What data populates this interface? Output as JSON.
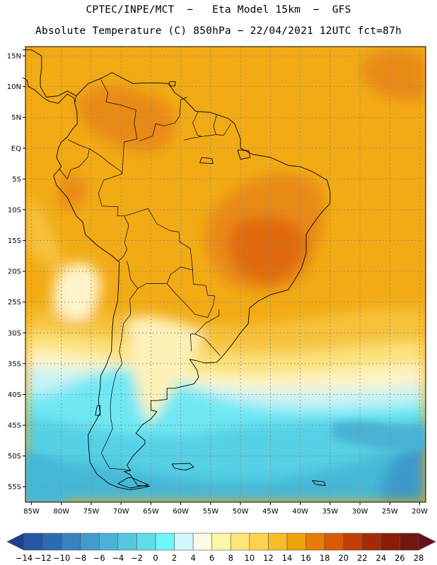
{
  "header": {
    "line1": "CPTEC/INPE/MCT  −   Eta Model 15km  −  GFS",
    "line2": "Absolute Temperature (C) 850hPa − 22/04/2021 12UTC fct=87h"
  },
  "map": {
    "lon_range": [
      -86,
      -19
    ],
    "lat_range": [
      -57.5,
      16.5
    ],
    "lat_ticks": [
      {
        "value": 15,
        "label": "15N"
      },
      {
        "value": 10,
        "label": "10N"
      },
      {
        "value": 5,
        "label": "5N"
      },
      {
        "value": 0,
        "label": "EQ"
      },
      {
        "value": -5,
        "label": "5S"
      },
      {
        "value": -10,
        "label": "10S"
      },
      {
        "value": -15,
        "label": "15S"
      },
      {
        "value": -20,
        "label": "20S"
      },
      {
        "value": -25,
        "label": "25S"
      },
      {
        "value": -30,
        "label": "30S"
      },
      {
        "value": -35,
        "label": "35S"
      },
      {
        "value": -40,
        "label": "40S"
      },
      {
        "value": -45,
        "label": "45S"
      },
      {
        "value": -50,
        "label": "50S"
      },
      {
        "value": -55,
        "label": "55S"
      }
    ],
    "lon_ticks": [
      {
        "value": -85,
        "label": "85W"
      },
      {
        "value": -80,
        "label": "80W"
      },
      {
        "value": -75,
        "label": "75W"
      },
      {
        "value": -70,
        "label": "70W"
      },
      {
        "value": -65,
        "label": "65W"
      },
      {
        "value": -60,
        "label": "60W"
      },
      {
        "value": -55,
        "label": "55W"
      },
      {
        "value": -50,
        "label": "50W"
      },
      {
        "value": -45,
        "label": "45W"
      },
      {
        "value": -40,
        "label": "40W"
      },
      {
        "value": -35,
        "label": "35W"
      },
      {
        "value": -30,
        "label": "30W"
      },
      {
        "value": -25,
        "label": "25W"
      },
      {
        "value": -20,
        "label": "20W"
      }
    ],
    "coastline": [
      [
        -77.5,
        8.5
      ],
      [
        -75.5,
        10.5
      ],
      [
        -73,
        11.5
      ],
      [
        -71.5,
        12.3
      ],
      [
        -70,
        11.5
      ],
      [
        -68,
        10.5
      ],
      [
        -66,
        10.6
      ],
      [
        -64,
        10.6
      ],
      [
        -62,
        10.5
      ],
      [
        -61,
        9
      ],
      [
        -59.5,
        8
      ],
      [
        -57.5,
        6
      ],
      [
        -55,
        5.8
      ],
      [
        -52,
        4.8
      ],
      [
        -51,
        4
      ],
      [
        -50,
        1.5
      ],
      [
        -50,
        0
      ],
      [
        -48,
        -1
      ],
      [
        -45,
        -1.5
      ],
      [
        -42,
        -2.8
      ],
      [
        -40,
        -3
      ],
      [
        -38,
        -3.8
      ],
      [
        -35.5,
        -5.2
      ],
      [
        -35,
        -7
      ],
      [
        -35,
        -9
      ],
      [
        -36.5,
        -10.5
      ],
      [
        -38,
        -12.5
      ],
      [
        -39,
        -14
      ],
      [
        -39,
        -17
      ],
      [
        -39.8,
        -19.5
      ],
      [
        -41,
        -21.5
      ],
      [
        -42,
        -23
      ],
      [
        -45,
        -23.8
      ],
      [
        -47,
        -24.8
      ],
      [
        -48.5,
        -26
      ],
      [
        -48.7,
        -28.5
      ],
      [
        -50,
        -30
      ],
      [
        -51.5,
        -32
      ],
      [
        -53,
        -33.8
      ],
      [
        -54,
        -34.8
      ],
      [
        -56,
        -34.9
      ],
      [
        -57.5,
        -34.5
      ],
      [
        -58.5,
        -34.3
      ],
      [
        -57.3,
        -36
      ],
      [
        -57,
        -37.2
      ],
      [
        -57.8,
        -38.3
      ],
      [
        -61,
        -39
      ],
      [
        -62.3,
        -39
      ],
      [
        -62.3,
        -40.8
      ],
      [
        -64,
        -41
      ],
      [
        -65,
        -41
      ],
      [
        -65,
        -42.5
      ],
      [
        -64,
        -42.8
      ],
      [
        -65,
        -44
      ],
      [
        -66.5,
        -45
      ],
      [
        -67.5,
        -46.3
      ],
      [
        -66,
        -47.5
      ],
      [
        -66,
        -48
      ],
      [
        -68,
        -50
      ],
      [
        -69,
        -51.5
      ],
      [
        -68.4,
        -52.4
      ],
      [
        -69.5,
        -52.5
      ],
      [
        -68.5,
        -53
      ],
      [
        -67.2,
        -54.8
      ],
      [
        -65.2,
        -54.9
      ],
      [
        -66.5,
        -55.2
      ],
      [
        -68.5,
        -55.5
      ],
      [
        -70.5,
        -55.1
      ],
      [
        -72,
        -54.5
      ],
      [
        -74,
        -53
      ],
      [
        -75.2,
        -51
      ],
      [
        -75.4,
        -48.8
      ],
      [
        -75.5,
        -46.5
      ],
      [
        -74.5,
        -44.8
      ],
      [
        -73.5,
        -43
      ],
      [
        -73.8,
        -41
      ],
      [
        -73.5,
        -39
      ],
      [
        -73.4,
        -37
      ],
      [
        -72.6,
        -35.5
      ],
      [
        -71.6,
        -33
      ],
      [
        -71.5,
        -30
      ],
      [
        -71.3,
        -27.5
      ],
      [
        -70.6,
        -25
      ],
      [
        -70.4,
        -22
      ],
      [
        -70.3,
        -18.5
      ],
      [
        -71.5,
        -17.5
      ],
      [
        -74,
        -15.8
      ],
      [
        -76,
        -14
      ],
      [
        -76.4,
        -12
      ],
      [
        -77.5,
        -11
      ],
      [
        -79,
        -8
      ],
      [
        -80.8,
        -6
      ],
      [
        -81.3,
        -4.5
      ],
      [
        -80,
        -3
      ],
      [
        -80.8,
        -1.5
      ],
      [
        -80.5,
        0
      ],
      [
        -80,
        1
      ],
      [
        -79,
        1.8
      ],
      [
        -78.2,
        3
      ],
      [
        -77.3,
        4
      ],
      [
        -77.4,
        6
      ],
      [
        -77.8,
        7.5
      ],
      [
        -77.5,
        8.5
      ]
    ],
    "central_america": [
      [
        -77.5,
        8.5
      ],
      [
        -79,
        9.3
      ],
      [
        -80.5,
        8.5
      ],
      [
        -82.5,
        8.3
      ],
      [
        -83.5,
        10
      ],
      [
        -83.5,
        11.5
      ],
      [
        -83.3,
        13
      ],
      [
        -83.3,
        15
      ],
      [
        -85,
        16
      ],
      [
        -86.5,
        16
      ]
    ],
    "central_america_pacific": [
      [
        -86.5,
        11.5
      ],
      [
        -85.7,
        11
      ],
      [
        -85.5,
        10
      ],
      [
        -84.5,
        9.5
      ],
      [
        -83,
        8.2
      ],
      [
        -82,
        7.6
      ],
      [
        -80.5,
        7.3
      ],
      [
        -80,
        7.8
      ],
      [
        -79,
        8.8
      ],
      [
        -78,
        8.2
      ],
      [
        -77.5,
        7.5
      ]
    ],
    "borders": [
      [
        [
          -73.4,
          11.2
        ],
        [
          -72.2,
          9
        ],
        [
          -72.5,
          7.5
        ],
        [
          -70,
          7
        ],
        [
          -67.5,
          6.2
        ],
        [
          -67.8,
          4
        ],
        [
          -67.3,
          1.5
        ],
        [
          -69.5,
          1
        ],
        [
          -69.8,
          -4.2
        ]
      ],
      [
        [
          -78.9,
          1.4
        ],
        [
          -77,
          0.5
        ],
        [
          -75.3,
          -0.1
        ],
        [
          -75.6,
          -1.5
        ],
        [
          -77,
          -3
        ],
        [
          -78.4,
          -3.5
        ],
        [
          -79,
          -5
        ],
        [
          -80.3,
          -3.4
        ]
      ],
      [
        [
          -75.3,
          -0.1
        ],
        [
          -73.5,
          -1.2
        ],
        [
          -72,
          -2.4
        ],
        [
          -70,
          -3.8
        ],
        [
          -69.9,
          -4.2
        ],
        [
          -72.9,
          -5.2
        ],
        [
          -73.8,
          -7.3
        ],
        [
          -73.2,
          -9.4
        ],
        [
          -70.5,
          -9.5
        ],
        [
          -70.6,
          -11
        ],
        [
          -69.5,
          -11
        ],
        [
          -68.7,
          -12.5
        ],
        [
          -69.4,
          -15.3
        ],
        [
          -69,
          -16.5
        ],
        [
          -69.6,
          -17.6
        ],
        [
          -70.4,
          -18.3
        ]
      ],
      [
        [
          -69.4,
          -11
        ],
        [
          -68,
          -10.6
        ],
        [
          -65.5,
          -9.8
        ],
        [
          -64,
          -12.3
        ],
        [
          -61.8,
          -13.4
        ],
        [
          -60.3,
          -13.6
        ],
        [
          -60.2,
          -15.2
        ],
        [
          -58.4,
          -16.3
        ],
        [
          -58,
          -19.8
        ],
        [
          -60,
          -19.3
        ],
        [
          -61.7,
          -20.5
        ],
        [
          -62.3,
          -22
        ],
        [
          -64,
          -22
        ],
        [
          -65.8,
          -22
        ],
        [
          -67.2,
          -22.8
        ],
        [
          -68.4,
          -21.3
        ],
        [
          -68.8,
          -19
        ],
        [
          -69.1,
          -18.3
        ]
      ],
      [
        [
          -62.3,
          -22
        ],
        [
          -61,
          -23.5
        ],
        [
          -59,
          -25.5
        ],
        [
          -57.6,
          -27
        ],
        [
          -55.5,
          -27.5
        ],
        [
          -54.6,
          -25.6
        ],
        [
          -54.3,
          -24
        ],
        [
          -55.5,
          -23.9
        ],
        [
          -55.8,
          -22.3
        ],
        [
          -57.9,
          -22.1
        ],
        [
          -58,
          -19.8
        ]
      ],
      [
        [
          -53.6,
          -26.2
        ],
        [
          -53.6,
          -27.2
        ],
        [
          -55.8,
          -28.4
        ],
        [
          -57.6,
          -30.2
        ],
        [
          -56,
          -30.9
        ],
        [
          -53.4,
          -33.7
        ]
      ],
      [
        [
          -58.2,
          -33
        ],
        [
          -58.4,
          -30.2
        ],
        [
          -57.6,
          -30.2
        ]
      ],
      [
        [
          -67.2,
          -22.8
        ],
        [
          -68.5,
          -24.5
        ],
        [
          -68.4,
          -27
        ],
        [
          -69.6,
          -28.5
        ],
        [
          -69.9,
          -31
        ],
        [
          -70.3,
          -33
        ],
        [
          -69.8,
          -35
        ],
        [
          -70.8,
          -36.5
        ],
        [
          -71.2,
          -38
        ],
        [
          -71.6,
          -40
        ],
        [
          -71.8,
          -42
        ],
        [
          -71.7,
          -44
        ],
        [
          -71.4,
          -45.5
        ],
        [
          -72.3,
          -47.5
        ],
        [
          -73.3,
          -49.5
        ],
        [
          -72.7,
          -50.7
        ],
        [
          -71.9,
          -52
        ],
        [
          -69.5,
          -52.2
        ],
        [
          -68.5,
          -52.3
        ]
      ],
      [
        [
          -60.2,
          5.2
        ],
        [
          -61,
          4.1
        ],
        [
          -62.8,
          3.6
        ],
        [
          -64.2,
          4
        ],
        [
          -64.7,
          2
        ],
        [
          -66.9,
          1.2
        ]
      ],
      [
        [
          -60.2,
          5.2
        ],
        [
          -60,
          7.9
        ],
        [
          -58.9,
          8.3
        ]
      ],
      [
        [
          -57.1,
          5.9
        ],
        [
          -58,
          4.1
        ],
        [
          -57.2,
          2.1
        ],
        [
          -56.5,
          1.9
        ]
      ],
      [
        [
          -54,
          5.5
        ],
        [
          -54.5,
          3.5
        ],
        [
          -54.1,
          2.2
        ]
      ],
      [
        [
          -59.5,
          1.3
        ],
        [
          -58.3,
          1.6
        ],
        [
          -56.5,
          1.9
        ],
        [
          -54.1,
          2.2
        ],
        [
          -52.8,
          2.1
        ],
        [
          -51.6,
          4
        ]
      ]
    ],
    "islands": [
      [
        [
          -68.3,
          -53.5
        ],
        [
          -65.4,
          -54.7
        ],
        [
          -68.5,
          -55.2
        ],
        [
          -70.5,
          -54.5
        ],
        [
          -69,
          -53.6
        ],
        [
          -68.3,
          -53.5
        ]
      ],
      [
        [
          -61.5,
          -51.3
        ],
        [
          -58.5,
          -51.2
        ],
        [
          -57.8,
          -51.8
        ],
        [
          -59.2,
          -52.3
        ],
        [
          -61,
          -52
        ],
        [
          -61.5,
          -51.3
        ]
      ],
      [
        [
          -38,
          -54
        ],
        [
          -36,
          -54.2
        ],
        [
          -35.8,
          -54.8
        ],
        [
          -37.5,
          -54.6
        ],
        [
          -38,
          -54
        ]
      ],
      [
        [
          -50.5,
          -0.3
        ],
        [
          -48.6,
          -0.4
        ],
        [
          -48.4,
          -1.5
        ],
        [
          -50,
          -1.8
        ],
        [
          -50.5,
          -0.3
        ]
      ],
      [
        [
          -61.9,
          10.8
        ],
        [
          -60.9,
          10.8
        ],
        [
          -61,
          10.1
        ],
        [
          -61.9,
          10.1
        ],
        [
          -61.9,
          10.8
        ]
      ],
      [
        [
          -74,
          -41.8
        ],
        [
          -73.5,
          -41.8
        ],
        [
          -73.5,
          -43.4
        ],
        [
          -74.3,
          -43.4
        ],
        [
          -74,
          -41.8
        ]
      ],
      [
        [
          -56.5,
          -1.5
        ],
        [
          -54.8,
          -1.7
        ],
        [
          -54.6,
          -2.5
        ],
        [
          -56.8,
          -2.4
        ],
        [
          -56.5,
          -1.5
        ]
      ]
    ]
  },
  "colorbar": {
    "colors": [
      "#1d3f8f",
      "#2556a6",
      "#2a6db4",
      "#3683c0",
      "#3f9ccb",
      "#4ab2d6",
      "#56c8e0",
      "#5fdcea",
      "#6ef6ff",
      "#d4f7fd",
      "#fefae4",
      "#fff5a6",
      "#fee577",
      "#fdd34e",
      "#f6bd28",
      "#efa40c",
      "#e77c08",
      "#d95a06",
      "#c33f05",
      "#a72a06",
      "#8b1d08",
      "#731610",
      "#6b0d1f"
    ],
    "labels": [
      "-14",
      "-12",
      "-10",
      "-8",
      "-6",
      "-4",
      "-2",
      "0",
      "2",
      "4",
      "6",
      "8",
      "10",
      "12",
      "14",
      "16",
      "18",
      "20",
      "22",
      "24",
      "26",
      "28"
    ]
  }
}
